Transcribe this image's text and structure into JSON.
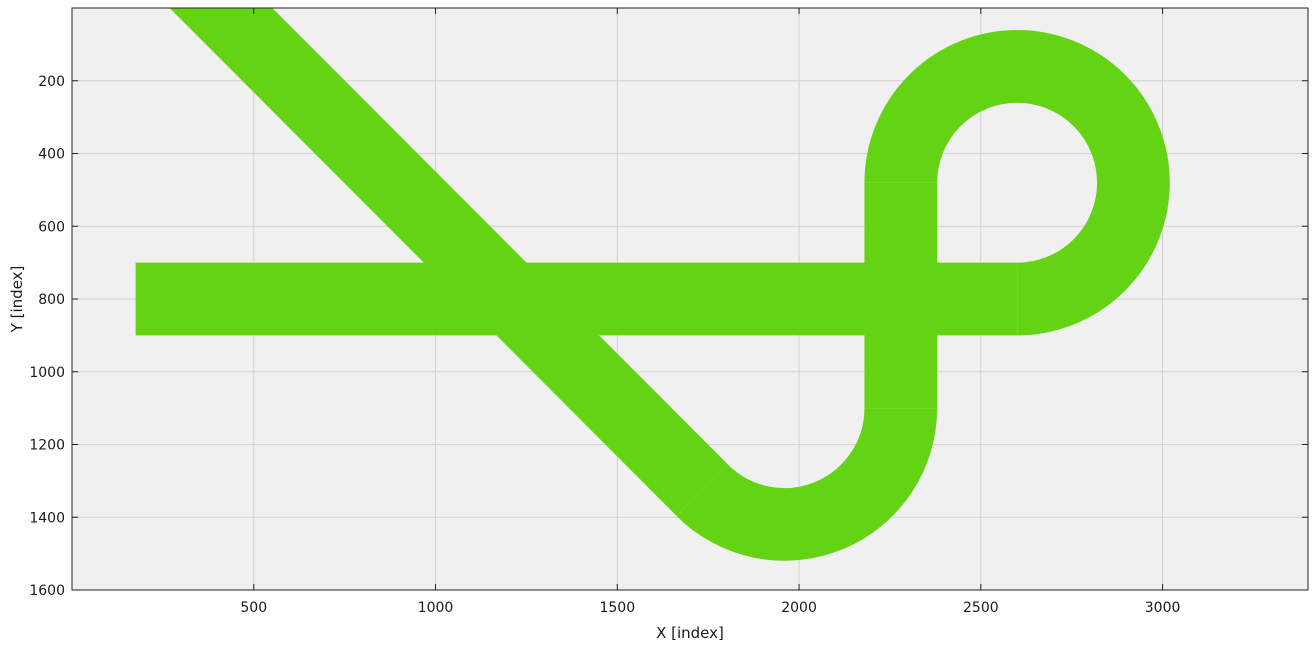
{
  "chart_data": {
    "type": "area",
    "xlabel": "X [index]",
    "ylabel": "Y [index]",
    "xlim": [
      0,
      3400
    ],
    "ylim": [
      1600,
      0
    ],
    "y_inverted": true,
    "grid": true,
    "x_ticks": [
      500,
      1000,
      1500,
      2000,
      2500,
      3000
    ],
    "y_ticks": [
      200,
      400,
      600,
      800,
      1000,
      1200,
      1400,
      1600
    ],
    "x_tick_labels": [
      "500",
      "1000",
      "1500",
      "2000",
      "2500",
      "3000"
    ],
    "y_tick_labels": [
      "200",
      "400",
      "600",
      "800",
      "1000",
      "1200",
      "1400",
      "1600"
    ],
    "background_color": "#f0f0f0",
    "grid_color": "#d0d0d0",
    "track_color": "#64d314",
    "track_width": 200,
    "track_segments": [
      {
        "name": "horizontal-straight",
        "kind": "line",
        "from": [
          175,
          800
        ],
        "to": [
          2600,
          800
        ]
      },
      {
        "name": "upper-loop",
        "kind": "arc",
        "center": [
          2600,
          480
        ],
        "radius": 320,
        "start_deg": 90,
        "end_deg": 180,
        "sweep": "through-right"
      },
      {
        "name": "vertical-upper",
        "kind": "line",
        "from": [
          2280,
          480
        ],
        "to": [
          2280,
          800
        ]
      },
      {
        "name": "vertical-lower",
        "kind": "line",
        "from": [
          2280,
          800
        ],
        "to": [
          2280,
          1100
        ]
      },
      {
        "name": "lower-curve",
        "kind": "arc",
        "center": [
          1960,
          1100
        ],
        "radius": 320,
        "start_deg": 0,
        "end_deg": 135
      },
      {
        "name": "diagonal-straight",
        "kind": "line",
        "from": [
          1734,
          1326
        ],
        "to": [
          200,
          -210
        ]
      }
    ]
  }
}
